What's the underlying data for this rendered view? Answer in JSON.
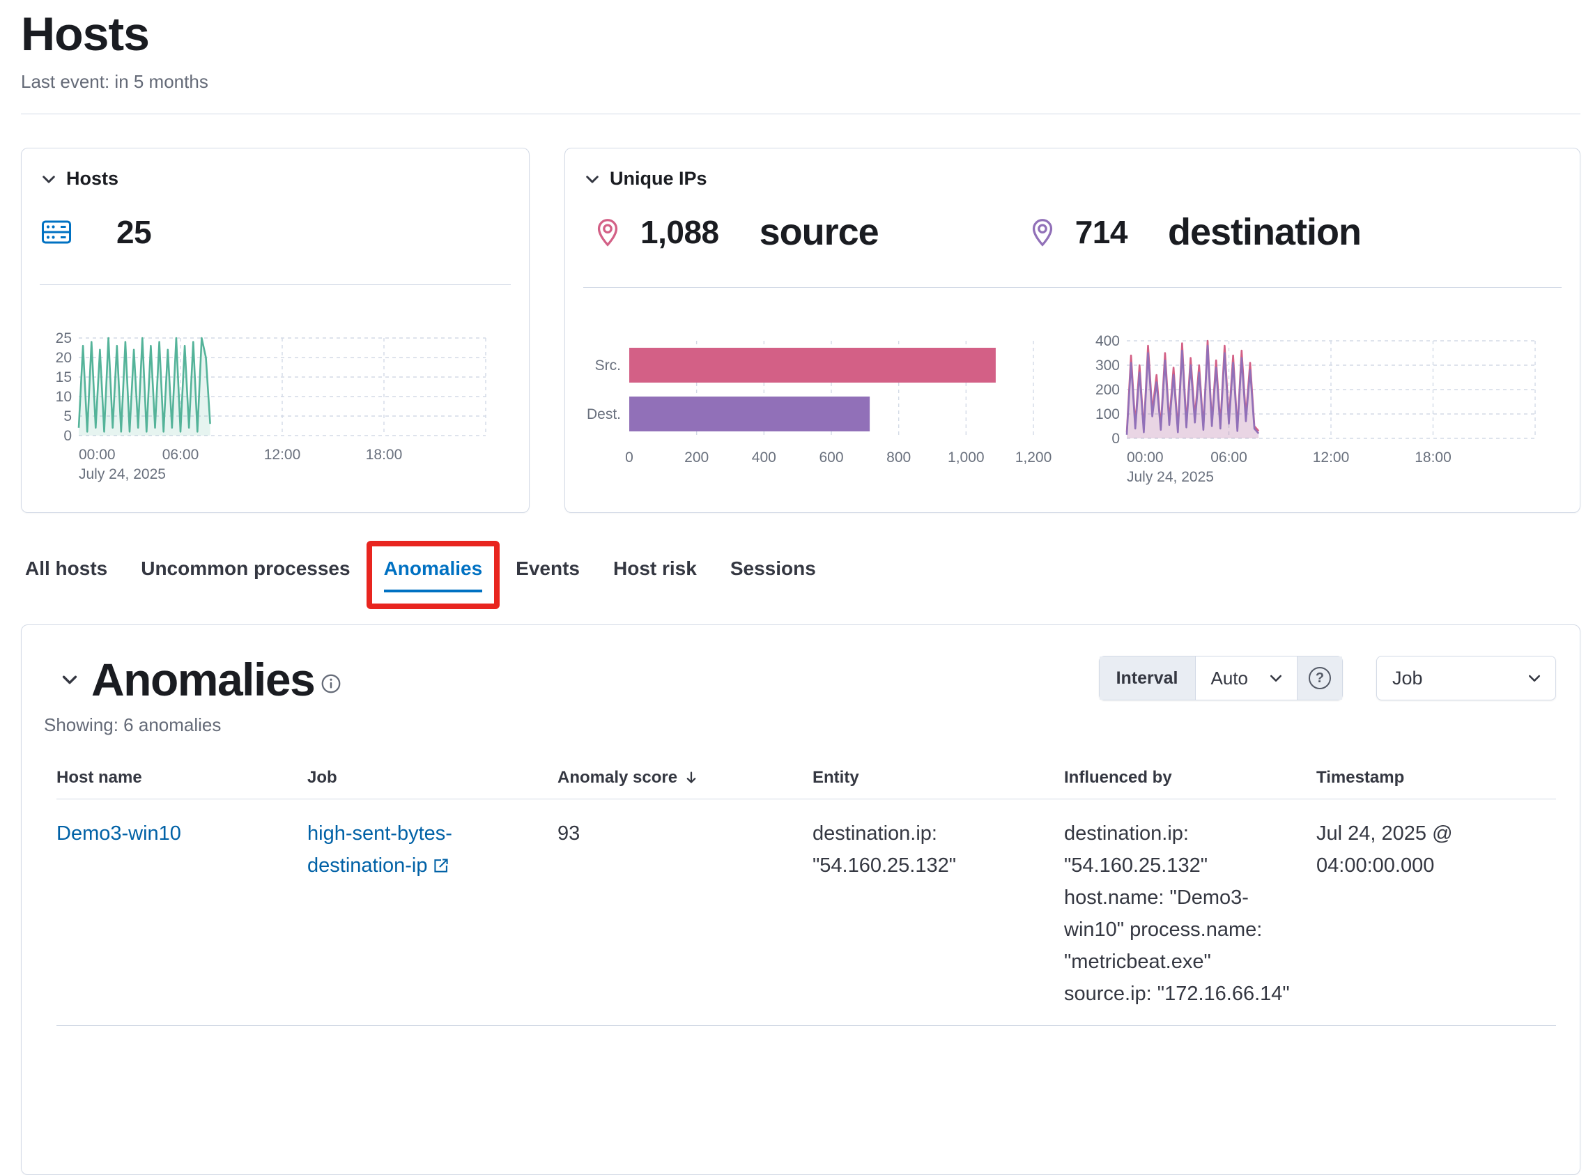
{
  "page": {
    "title": "Hosts",
    "subtitle": "Last event: in 5 months"
  },
  "hosts_card": {
    "title": "Hosts",
    "count": "25"
  },
  "unique_ips_card": {
    "title": "Unique IPs",
    "source": {
      "value": "1,088",
      "label": "source"
    },
    "destination": {
      "value": "714",
      "label": "destination"
    }
  },
  "tabs": [
    {
      "label": "All hosts",
      "selected": false
    },
    {
      "label": "Uncommon processes",
      "selected": false
    },
    {
      "label": "Anomalies",
      "selected": true,
      "annotated": true
    },
    {
      "label": "Events",
      "selected": false
    },
    {
      "label": "Host risk",
      "selected": false
    },
    {
      "label": "Sessions",
      "selected": false
    }
  ],
  "anomalies_panel": {
    "title": "Anomalies",
    "showing": "Showing: 6 anomalies",
    "interval_label": "Interval",
    "interval_value": "Auto",
    "job_label": "Job",
    "table": {
      "columns": [
        "Host name",
        "Job",
        "Anomaly score",
        "Entity",
        "Influenced by",
        "Timestamp"
      ],
      "sorted_column": "Anomaly score",
      "sort_direction": "desc",
      "rows": [
        {
          "host_name": "Demo3-win10",
          "job": "high-sent-bytes-destination-ip",
          "anomaly_score": "93",
          "entity": "destination.ip: \"54.160.25.132\"",
          "influenced_by": "destination.ip: \"54.160.25.132\" host.name: \"Demo3-win10\" process.name: \"metricbeat.exe\" source.ip: \"172.16.66.14\"",
          "timestamp": "Jul 24, 2025 @ 04:00:00.000"
        }
      ]
    }
  },
  "icons": {
    "question_glyph": "?"
  },
  "colors": {
    "link": "#0061a6",
    "tab_selected": "#0071c2",
    "annotation_red": "#e8251f",
    "green": "#54B399",
    "pink": "#D36086",
    "purple": "#9170B8",
    "icon_blue": "#0071c2",
    "border": "#d3dae6"
  },
  "chart_data": [
    {
      "type": "area",
      "name": "hosts-over-time",
      "color": "#54B399",
      "x_start_hour": 0,
      "x_step_hours": 0.25,
      "values": [
        2,
        23,
        1,
        24,
        2,
        22,
        1,
        25,
        2,
        23,
        1,
        24,
        1,
        22,
        2,
        25,
        1,
        23,
        2,
        24,
        1,
        22,
        2,
        25,
        1,
        23,
        2,
        24,
        1,
        25,
        20,
        3
      ],
      "ylim": [
        0,
        25
      ],
      "y_ticks": [
        0,
        5,
        10,
        15,
        20,
        25
      ],
      "x_range_hours": [
        0,
        24
      ],
      "x_ticks": [
        {
          "hour": 0,
          "label": "00:00",
          "sub": "July 24, 2025"
        },
        {
          "hour": 6,
          "label": "06:00"
        },
        {
          "hour": 12,
          "label": "12:00"
        },
        {
          "hour": 18,
          "label": "18:00"
        }
      ],
      "gutter": 56,
      "pad_right": 36
    },
    {
      "type": "bar",
      "name": "unique-ips-src-dest",
      "orientation": "horizontal",
      "categories": [
        "Src.",
        "Dest."
      ],
      "values": [
        1088,
        714
      ],
      "colors": [
        "#D36086",
        "#9170B8"
      ],
      "xlim": [
        0,
        1200
      ],
      "x_ticks": [
        0,
        200,
        400,
        600,
        800,
        1000,
        1200
      ],
      "x_tick_labels": [
        "0",
        "200",
        "400",
        "600",
        "800",
        "1,000",
        "1,200"
      ]
    },
    {
      "type": "line",
      "name": "unique-ips-over-time",
      "series": [
        {
          "name": "source",
          "color": "#D36086",
          "values": [
            25,
            340,
            55,
            300,
            35,
            380,
            110,
            260,
            45,
            350,
            70,
            290,
            35,
            390,
            60,
            330,
            85,
            300,
            45,
            400,
            65,
            320,
            55,
            380,
            75,
            340,
            40,
            360,
            90,
            310,
            50,
            30
          ]
        },
        {
          "name": "destination",
          "color": "#9170B8",
          "values": [
            15,
            310,
            40,
            270,
            25,
            350,
            90,
            230,
            35,
            320,
            55,
            260,
            25,
            360,
            45,
            300,
            65,
            270,
            35,
            380,
            50,
            290,
            40,
            350,
            60,
            310,
            30,
            330,
            70,
            280,
            40,
            20
          ]
        }
      ],
      "x_start_hour": 0,
      "x_step_hours": 0.25,
      "ylim": [
        0,
        400
      ],
      "y_ticks": [
        0,
        100,
        200,
        300,
        400
      ],
      "x_range_hours": [
        0,
        24
      ],
      "x_ticks": [
        {
          "hour": 0,
          "label": "00:00",
          "sub": "July 24, 2025"
        },
        {
          "hour": 6,
          "label": "06:00"
        },
        {
          "hour": 12,
          "label": "12:00"
        },
        {
          "hour": 18,
          "label": "18:00"
        }
      ],
      "gutter": 56,
      "pad_right": 14
    }
  ]
}
